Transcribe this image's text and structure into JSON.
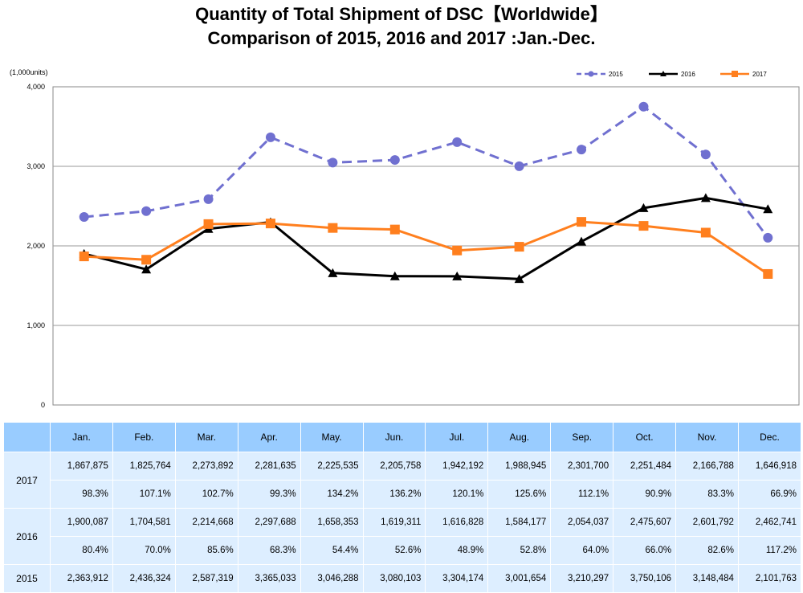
{
  "titles": {
    "line1": "Quantity of Total Shipment of DSC【Worldwide】",
    "line2": "Comparison of 2015, 2016 and 2017 :Jan.-Dec."
  },
  "chart_data": {
    "type": "line",
    "unit_label": "(1,000units)",
    "categories": [
      "Jan.",
      "Feb.",
      "Mar.",
      "Apr.",
      "May.",
      "Jun.",
      "Jul.",
      "Aug.",
      "Sep.",
      "Oct.",
      "Nov.",
      "Dec."
    ],
    "ylim": [
      0,
      4000
    ],
    "yticks": [
      0,
      1000,
      2000,
      3000,
      4000
    ],
    "ytick_labels": [
      "0",
      "1,000",
      "2,000",
      "3,000",
      "4,000"
    ],
    "grid": true,
    "legend_position": "top-right",
    "series": [
      {
        "name": "2015",
        "color": "#7070d0",
        "style": "dashed",
        "marker": "circle",
        "values": [
          2363.912,
          2436.324,
          2587.319,
          3365.033,
          3046.288,
          3080.103,
          3304.174,
          3001.654,
          3210.297,
          3750.106,
          3148.484,
          2101.763
        ]
      },
      {
        "name": "2016",
        "color": "#000000",
        "style": "solid",
        "marker": "triangle",
        "values": [
          1900.087,
          1704.581,
          2214.668,
          2297.688,
          1658.353,
          1619.311,
          1616.828,
          1584.177,
          2054.037,
          2475.607,
          2601.792,
          2462.741
        ]
      },
      {
        "name": "2017",
        "color": "#ff7f1e",
        "style": "solid",
        "marker": "square",
        "values": [
          1867.875,
          1825.764,
          2273.892,
          2281.635,
          2225.535,
          2205.758,
          1942.192,
          1988.945,
          2301.7,
          2251.484,
          2166.788,
          1646.918
        ]
      }
    ]
  },
  "table": {
    "months": [
      "Jan.",
      "Feb.",
      "Mar.",
      "Apr.",
      "May.",
      "Jun.",
      "Jul.",
      "Aug.",
      "Sep.",
      "Oct.",
      "Nov.",
      "Dec."
    ],
    "rows": [
      {
        "year": "2017",
        "values": [
          "1,867,875",
          "1,825,764",
          "2,273,892",
          "2,281,635",
          "2,225,535",
          "2,205,758",
          "1,942,192",
          "1,988,945",
          "2,301,700",
          "2,251,484",
          "2,166,788",
          "1,646,918"
        ],
        "ratios": [
          "98.3%",
          "107.1%",
          "102.7%",
          "99.3%",
          "134.2%",
          "136.2%",
          "120.1%",
          "125.6%",
          "112.1%",
          "90.9%",
          "83.3%",
          "66.9%"
        ]
      },
      {
        "year": "2016",
        "values": [
          "1,900,087",
          "1,704,581",
          "2,214,668",
          "2,297,688",
          "1,658,353",
          "1,619,311",
          "1,616,828",
          "1,584,177",
          "2,054,037",
          "2,475,607",
          "2,601,792",
          "2,462,741"
        ],
        "ratios": [
          "80.4%",
          "70.0%",
          "85.6%",
          "68.3%",
          "54.4%",
          "52.6%",
          "48.9%",
          "52.8%",
          "64.0%",
          "66.0%",
          "82.6%",
          "117.2%"
        ]
      },
      {
        "year": "2015",
        "values": [
          "2,363,912",
          "2,436,324",
          "2,587,319",
          "3,365,033",
          "3,046,288",
          "3,080,103",
          "3,304,174",
          "3,001,654",
          "3,210,297",
          "3,750,106",
          "3,148,484",
          "2,101,763"
        ]
      }
    ]
  }
}
